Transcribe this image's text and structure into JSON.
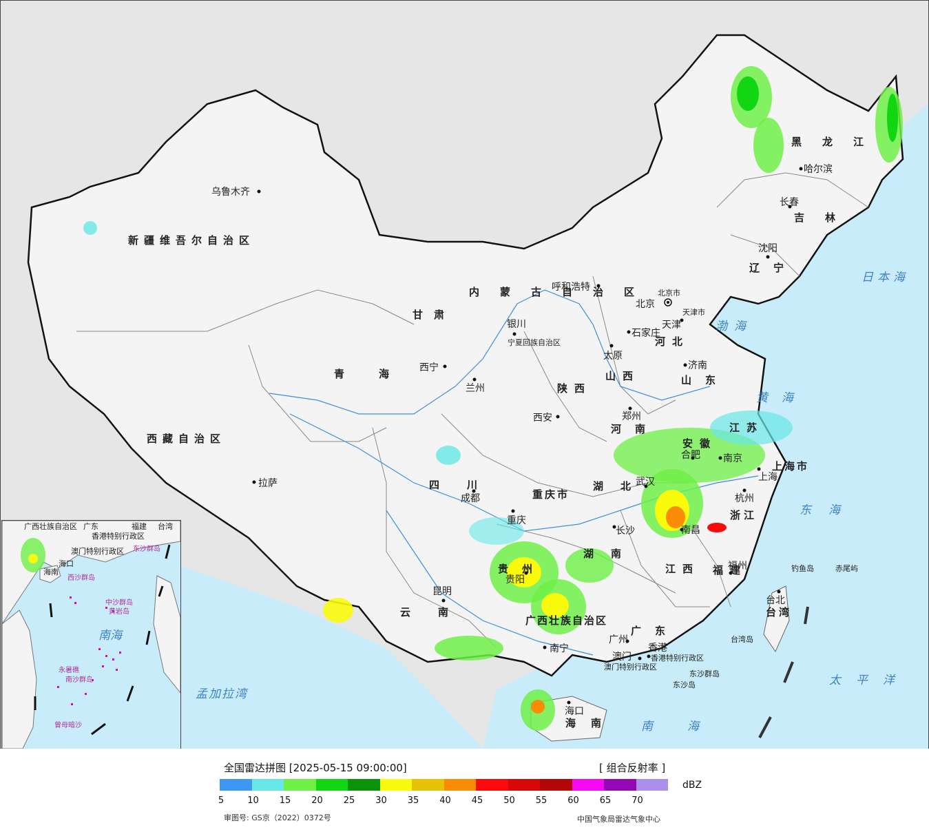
{
  "map": {
    "cities": [
      "乌鲁木齐",
      "拉萨",
      "西宁",
      "兰州",
      "银川",
      "呼和浩特",
      "北京",
      "天津",
      "石家庄",
      "太原",
      "济南",
      "郑州",
      "西安",
      "成都",
      "重庆",
      "昆明",
      "贵阳",
      "南宁",
      "长沙",
      "武汉",
      "合肥",
      "南京",
      "上海",
      "杭州",
      "南昌",
      "福州",
      "台北",
      "广州",
      "香港",
      "澳门",
      "海口",
      "沈阳",
      "长春",
      "哈尔滨"
    ],
    "regions": [
      "新疆维吾尔自治区",
      "西藏自治区",
      "青海",
      "甘肃",
      "四川",
      "云南",
      "内蒙古自治区",
      "黑龙江",
      "吉林",
      "辽宁",
      "河北",
      "山西",
      "山东",
      "河南",
      "陕西",
      "湖北",
      "湖南",
      "贵州",
      "广西壮族自治区",
      "广东",
      "江西",
      "福建",
      "浙江",
      "安徽",
      "江苏",
      "上海市",
      "重庆市",
      "海南",
      "台湾",
      "宁夏回族自治区",
      "香港特别行政区",
      "澳门特别行政区",
      "北京市",
      "天津市"
    ],
    "seas": [
      "日本海",
      "渤海",
      "黄海",
      "东海",
      "太平洋",
      "南海",
      "孟加拉湾"
    ],
    "islands": [
      "钓鱼岛",
      "赤尾屿",
      "台湾岛",
      "东沙群岛",
      "东沙岛"
    ],
    "inset": {
      "labels": [
        "广西壮族自治区",
        "广东",
        "福建",
        "台湾",
        "香港特别行政区",
        "澳门特别行政区",
        "东沙群岛",
        "海口",
        "海南",
        "西沙群岛",
        "中沙群岛",
        "黄岩岛",
        "南海",
        "永暑礁",
        "南沙群岛",
        "曾母暗沙"
      ]
    },
    "colors": {
      "land": "#f4f4f4",
      "water": "#c9ecfa",
      "outside": "#e6e6e6",
      "border": "#111111"
    }
  },
  "legend": {
    "title": "全国雷达拼图 [2025-05-15 09:00:00]",
    "product": "[ 组合反射率 ]",
    "unit": "dBZ",
    "ticks": [
      "5",
      "10",
      "15",
      "20",
      "25",
      "30",
      "35",
      "40",
      "45",
      "50",
      "55",
      "60",
      "65",
      "70"
    ],
    "colors": [
      "#3d98f1",
      "#67e7e7",
      "#6ef046",
      "#12d611",
      "#0a930a",
      "#fafa0d",
      "#e6c208",
      "#fa8c06",
      "#fa0a0a",
      "#d70808",
      "#b40606",
      "#f60af6",
      "#9408b4",
      "#ab8fed"
    ],
    "review_no": "审图号: GS京（2022）0372号",
    "issuer": "中国气象局雷达气象中心"
  }
}
